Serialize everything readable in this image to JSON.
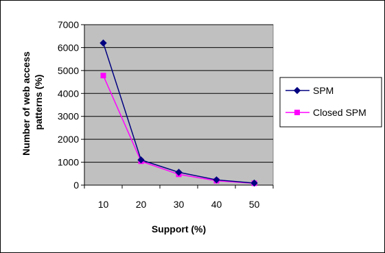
{
  "chart_data": {
    "type": "line",
    "title": "",
    "xlabel": "Support (%)",
    "ylabel": "Number of web access patterns (%)",
    "ylabel_lines": [
      "Number of web access",
      "patterns (%)"
    ],
    "categories": [
      "10",
      "20",
      "30",
      "40",
      "50"
    ],
    "ylim": [
      0,
      7000
    ],
    "yticks": [
      "0",
      "1000",
      "2000",
      "3000",
      "4000",
      "5000",
      "6000",
      "7000"
    ],
    "grid": true,
    "legend_position": "right",
    "series": [
      {
        "name": "SPM",
        "values": [
          6200,
          1100,
          560,
          230,
          90
        ],
        "color": "#000080",
        "marker": "diamond"
      },
      {
        "name": "Closed SPM",
        "values": [
          4780,
          1040,
          470,
          190,
          80
        ],
        "color": "#ff00ff",
        "marker": "square"
      }
    ],
    "colors": {
      "plot_background": "#c0c0c0",
      "gridline": "#000000",
      "frame": "#000000"
    }
  }
}
